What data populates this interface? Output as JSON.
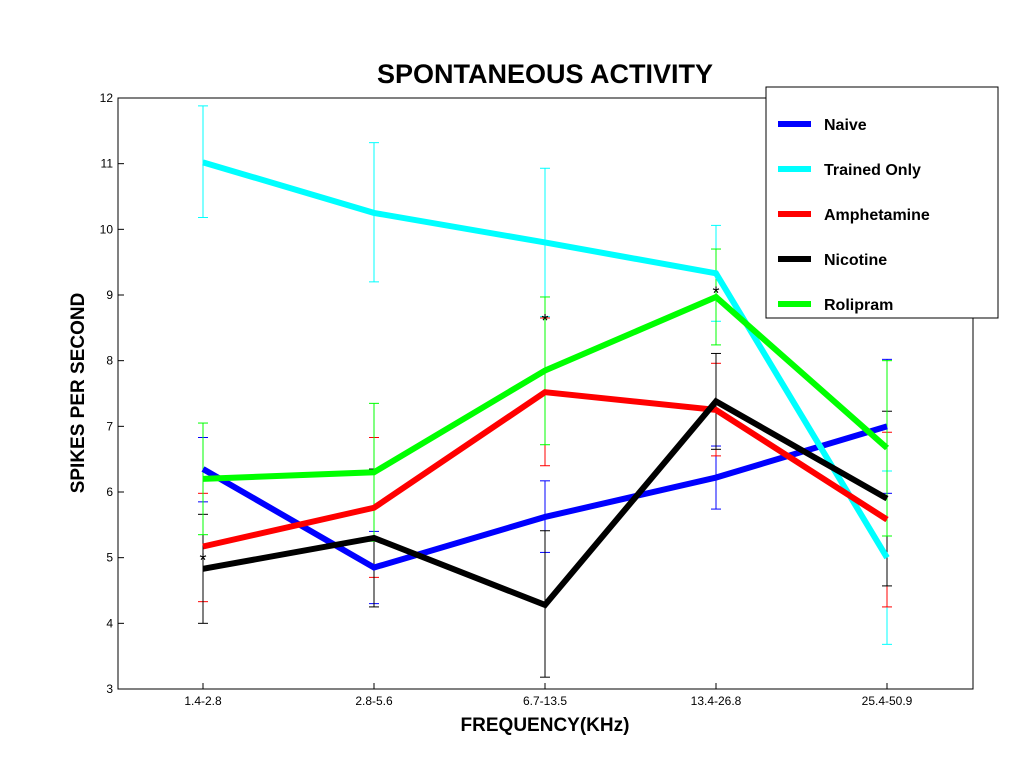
{
  "chart_data": {
    "type": "line",
    "title": "SPONTANEOUS ACTIVITY",
    "xlabel": "FREQUENCY(KHz)",
    "ylabel": "SPIKES PER SECOND",
    "categories": [
      "1.4-2.8",
      "2.8-5.6",
      "6.7-13.5",
      "13.4-26.8",
      "25.4-50.9"
    ],
    "ylim": [
      3,
      12
    ],
    "yticks": [
      3,
      4,
      5,
      6,
      7,
      8,
      9,
      10,
      11,
      12
    ],
    "grid": false,
    "legend_position": "top-right",
    "series": [
      {
        "name": "Naive",
        "color": "#0000ff",
        "values": [
          6.35,
          4.85,
          5.62,
          6.22,
          7.0
        ],
        "err_low": [
          5.85,
          4.3,
          5.08,
          5.74,
          5.98
        ],
        "err_high": [
          6.83,
          5.4,
          6.17,
          6.7,
          8.02
        ]
      },
      {
        "name": "Trained Only",
        "color": "#00ffff",
        "values": [
          11.02,
          10.25,
          9.8,
          9.33,
          5.0
        ],
        "err_low": [
          10.18,
          9.2,
          8.67,
          8.6,
          3.68
        ],
        "err_high": [
          11.88,
          11.32,
          10.93,
          10.06,
          6.32
        ]
      },
      {
        "name": "Amphetamine",
        "color": "#ff0000",
        "values": [
          5.17,
          5.76,
          7.52,
          7.25,
          5.58
        ],
        "err_low": [
          4.33,
          4.7,
          6.4,
          6.55,
          4.25
        ],
        "err_high": [
          5.98,
          6.83,
          8.65,
          7.96,
          6.91
        ]
      },
      {
        "name": "Nicotine",
        "color": "#000000",
        "values": [
          4.83,
          5.3,
          4.28,
          7.38,
          5.9
        ],
        "err_low": [
          4.0,
          4.25,
          3.18,
          6.65,
          4.57
        ],
        "err_high": [
          5.66,
          6.35,
          5.41,
          8.11,
          7.23
        ]
      },
      {
        "name": "Rolipram",
        "color": "#00ff00",
        "values": [
          6.2,
          6.3,
          7.85,
          8.97,
          6.67
        ],
        "err_low": [
          5.35,
          5.25,
          6.72,
          8.24,
          5.33
        ],
        "err_high": [
          7.05,
          7.35,
          8.97,
          9.7,
          8.0
        ]
      }
    ],
    "annotations": [
      {
        "text": "*",
        "category_index": 0,
        "y": 5.0
      },
      {
        "text": "*",
        "category_index": 2,
        "y": 8.65
      },
      {
        "text": "*",
        "category_index": 3,
        "y": 9.07
      }
    ]
  }
}
